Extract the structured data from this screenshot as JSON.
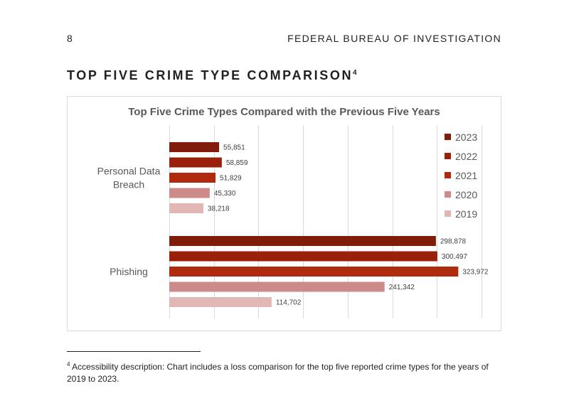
{
  "page": {
    "number": "8",
    "running_header": "FEDERAL BUREAU OF INVESTIGATION",
    "section_title": "TOP FIVE CRIME TYPE COMPARISON",
    "section_title_footnote_ref": "4"
  },
  "footnote": {
    "marker": "4",
    "text": "Accessibility description: Chart includes a loss comparison for the top five reported crime types for the years of 2019 to 2023."
  },
  "chart_data": {
    "type": "bar",
    "orientation": "horizontal",
    "title": "Top Five Crime Types Compared with the Previous Five Years",
    "categories": [
      "Personal Data Breach",
      "Phishing"
    ],
    "series": [
      {
        "name": "2023",
        "color": "#7f1d0a",
        "values": [
          55851,
          298878
        ]
      },
      {
        "name": "2022",
        "color": "#9b2009",
        "values": [
          58859,
          300497
        ]
      },
      {
        "name": "2021",
        "color": "#b02a0d",
        "values": [
          51829,
          323972
        ]
      },
      {
        "name": "2020",
        "color": "#cc8a88",
        "values": [
          45330,
          241342
        ]
      },
      {
        "name": "2019",
        "color": "#e2b6b4",
        "values": [
          38218,
          114702
        ]
      }
    ],
    "data_labels": [
      [
        "55,851",
        "298,878"
      ],
      [
        "58,859",
        "300,497"
      ],
      [
        "51,829",
        "323,972"
      ],
      [
        "45,330",
        "241,342"
      ],
      [
        "38,218",
        "114,702"
      ]
    ],
    "xlim": [
      0,
      350000
    ],
    "x_gridline_step": 50000,
    "grid": true,
    "x_tick_labels_shown": false,
    "legend": "right"
  }
}
